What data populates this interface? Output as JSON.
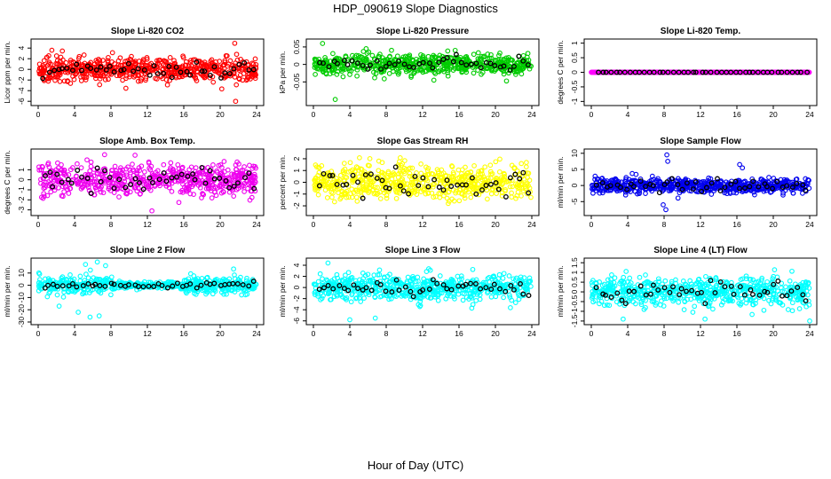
{
  "figure": {
    "title": "HDP_090619  Slope Diagnostics",
    "xlabel": "Hour of Day (UTC)",
    "highlight_color": "#000000"
  },
  "chart_data": [
    {
      "type": "scatter",
      "title": "Slope Li-820 CO2",
      "ylabel": "Licor ppm per min.",
      "color": "#ff0000",
      "xlim": [
        0,
        24
      ],
      "xticks": [
        0,
        4,
        8,
        12,
        16,
        20,
        24
      ],
      "ylim": [
        -6.3,
        5.2
      ],
      "yticks": [
        -6,
        -4,
        -2,
        0,
        2,
        4
      ],
      "series_stats": {
        "spread": 1.4,
        "scale": 1.0,
        "outliers": [
          [
            21.6,
            4.9
          ],
          [
            21.7,
            -6.0
          ],
          [
            1.5,
            3.6
          ]
        ]
      }
    },
    {
      "type": "scatter",
      "title": "Slope Li-820 Pressure",
      "ylabel": "kPa per min.",
      "color": "#00cc00",
      "xlim": [
        0,
        24
      ],
      "xticks": [
        0,
        4,
        8,
        12,
        16,
        20,
        24
      ],
      "ylim": [
        -0.11,
        0.065
      ],
      "yticks": [
        -0.05,
        0,
        0.05
      ],
      "series_stats": {
        "spread": 0.02,
        "scale": 0.05,
        "outliers": [
          [
            1.0,
            0.06
          ],
          [
            2.4,
            -0.1
          ],
          [
            5.8,
            0.045
          ]
        ]
      }
    },
    {
      "type": "scatter",
      "title": "Slope Li-820 Temp.",
      "ylabel": "degrees C per min.",
      "color": "#ff00ff",
      "xlim": [
        0,
        24
      ],
      "xticks": [
        0,
        4,
        8,
        12,
        16,
        20,
        24
      ],
      "ylim": [
        -1.05,
        1.05
      ],
      "yticks": [
        -1,
        -0.5,
        0,
        0.5,
        1
      ],
      "series_stats": {
        "spread": 0.0,
        "scale": 0.5,
        "outliers": []
      }
    },
    {
      "type": "scatter",
      "title": "Slope Amb. Box Temp.",
      "ylabel": "degrees C per min.",
      "color": "#ee00ee",
      "xlim": [
        0,
        24
      ],
      "xticks": [
        0,
        4,
        8,
        12,
        16,
        20,
        24
      ],
      "ylim": [
        -3.3,
        2.8
      ],
      "yticks": [
        -3,
        -2,
        -1,
        0,
        1
      ],
      "series_stats": {
        "spread": 1.0,
        "scale": 1.0,
        "outliers": [
          [
            12.5,
            -3.1
          ],
          [
            7.3,
            2.5
          ]
        ]
      }
    },
    {
      "type": "scatter",
      "title": "Slope Gas Stream RH",
      "ylabel": "percent per min.",
      "color": "#ffff00",
      "xlim": [
        0,
        24
      ],
      "xticks": [
        0,
        4,
        8,
        12,
        16,
        20,
        24
      ],
      "ylim": [
        -2.6,
        2.6
      ],
      "yticks": [
        -2,
        -1,
        0,
        1,
        2
      ],
      "series_stats": {
        "spread": 1.0,
        "scale": 1.0,
        "outliers": []
      }
    },
    {
      "type": "scatter",
      "title": "Slope Sample Flow",
      "ylabel": "ml/min per min.",
      "color": "#0000ee",
      "xlim": [
        0,
        24
      ],
      "xticks": [
        0,
        4,
        8,
        12,
        16,
        20,
        24
      ],
      "ylim": [
        -8.5,
        10.5
      ],
      "yticks": [
        -5,
        0,
        5,
        10
      ],
      "series_stats": {
        "spread": 1.6,
        "scale": 5.0,
        "outliers": [
          [
            8.3,
            9.5
          ],
          [
            8.4,
            7.5
          ],
          [
            8.2,
            -7.5
          ],
          [
            16.3,
            6.5
          ],
          [
            16.6,
            5.5
          ],
          [
            7.9,
            -6.0
          ]
        ]
      }
    },
    {
      "type": "scatter",
      "title": "Slope Line 2 Flow",
      "ylabel": "ml/min per min.",
      "color": "#00ffff",
      "xlim": [
        0,
        24
      ],
      "xticks": [
        0,
        4,
        8,
        12,
        16,
        20,
        24
      ],
      "ylim": [
        -30,
        20
      ],
      "yticks": [
        -30,
        -20,
        -10,
        0,
        10
      ],
      "series_stats": {
        "spread": 4.5,
        "scale": 10.0,
        "outliers": [
          [
            6.5,
            19
          ],
          [
            5.2,
            17
          ],
          [
            7.4,
            16
          ],
          [
            5.7,
            -26
          ],
          [
            6.7,
            -25
          ],
          [
            4.4,
            -22
          ],
          [
            2.3,
            -17
          ]
        ]
      }
    },
    {
      "type": "scatter",
      "title": "Slope Line 3 Flow",
      "ylabel": "ml/min per min.",
      "color": "#00ffff",
      "xlim": [
        0,
        24
      ],
      "xticks": [
        0,
        4,
        8,
        12,
        16,
        20,
        24
      ],
      "ylim": [
        -6.2,
        4.8
      ],
      "yticks": [
        -6,
        -4,
        -2,
        0,
        2,
        4
      ],
      "series_stats": {
        "spread": 1.5,
        "scale": 2.0,
        "outliers": [
          [
            1.6,
            4.4
          ],
          [
            4.0,
            -5.8
          ],
          [
            6.8,
            -5.5
          ]
        ]
      }
    },
    {
      "type": "scatter",
      "title": "Slope Line 4 (LT) Flow",
      "ylabel": "ml/min per min.",
      "color": "#00ffff",
      "xlim": [
        0,
        24
      ],
      "xticks": [
        0,
        4,
        8,
        12,
        16,
        20,
        24
      ],
      "ylim": [
        -1.55,
        1.6
      ],
      "yticks": [
        -1.5,
        -1,
        -0.5,
        0,
        0.5,
        1,
        1.5
      ],
      "series_stats": {
        "spread": 0.5,
        "scale": 0.5,
        "outliers": [
          [
            3.5,
            -1.4
          ],
          [
            12.5,
            -1.4
          ],
          [
            24.0,
            -1.5
          ]
        ]
      }
    }
  ]
}
